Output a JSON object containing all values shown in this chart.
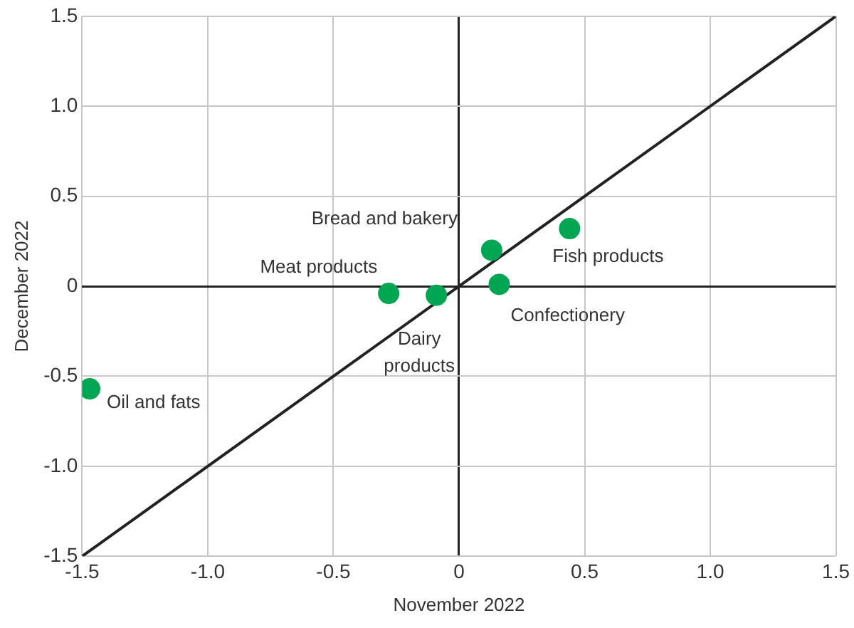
{
  "chart_data": {
    "type": "scatter",
    "xlabel": "November 2022",
    "ylabel": "December 2022",
    "series": [
      {
        "color": "#00a651",
        "x": [
          -1.47,
          -0.28,
          -0.09,
          0.13,
          0.16,
          0.44
        ],
        "values": [
          -0.57,
          -0.04,
          -0.05,
          0.2,
          0.01,
          0.32
        ]
      },
      {
        "type": "line",
        "color": "#222222",
        "marker": "none",
        "x": [
          -1.5,
          1.5
        ],
        "values": [
          -1.5,
          1.5
        ]
      }
    ],
    "annotations": [
      {
        "text": "Oil and fats",
        "x": -1.47,
        "y": -0.57
      },
      {
        "text": "Meat products",
        "x": -0.28,
        "y": -0.04
      },
      {
        "text": "Dairy products",
        "x": -0.09,
        "y": -0.05
      },
      {
        "text": "Bread and bakery",
        "x": 0.13,
        "y": 0.2
      },
      {
        "text": "Confectionery",
        "x": 0.16,
        "y": 0.01
      },
      {
        "text": "Fish products",
        "x": 0.44,
        "y": 0.32
      }
    ],
    "xlim": [
      -1.5,
      1.5
    ],
    "ylim": [
      -1.5,
      1.5
    ],
    "xticks": [
      {
        "value": -1.5,
        "label": "-1.5"
      },
      {
        "value": -1,
        "label": "-1.0"
      },
      {
        "value": -0.5,
        "label": "-0.5"
      },
      {
        "value": 0,
        "label": "0"
      },
      {
        "value": 0.5,
        "label": "0.5"
      },
      {
        "value": 1,
        "label": "1.0"
      },
      {
        "value": 1.5,
        "label": "1.5"
      }
    ],
    "yticks": [
      {
        "value": -1.5,
        "label": "-1.5"
      },
      {
        "value": -1,
        "label": "-1.0"
      },
      {
        "value": -0.5,
        "label": "-0.5"
      },
      {
        "value": 0,
        "label": "0"
      },
      {
        "value": 0.5,
        "label": "0.5"
      },
      {
        "value": 1,
        "label": "1.0"
      },
      {
        "value": 1.5,
        "label": "1.5"
      }
    ],
    "grid": true,
    "legend": false,
    "marker": "circle",
    "line_style": "solid"
  }
}
